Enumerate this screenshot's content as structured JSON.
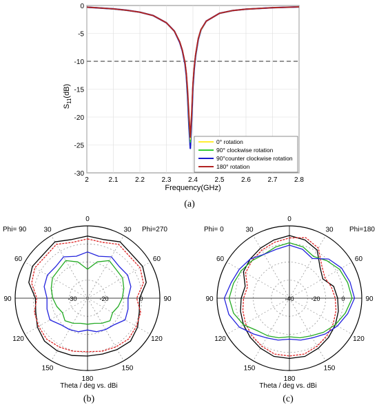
{
  "colors": {
    "rot0": "#ffee33",
    "rot90cw": "#33cc33",
    "rot90ccw": "#1a1acc",
    "rot180": "#b22222",
    "polar_black": "#000000",
    "polar_red": "#dd2222",
    "polar_green": "#22aa22",
    "polar_blue": "#2222dd",
    "ref_line": "#555555",
    "grid": "#dddddd"
  },
  "chart_data": [
    {
      "type": "line",
      "panel_label": "(a)",
      "xlabel": "Frequency(GHz)",
      "ylabel": "S11(dB)",
      "ylabel_main": "S",
      "ylabel_sub": "11",
      "ylabel_unit": "(dB)",
      "xlim": [
        2.0,
        2.8
      ],
      "ylim": [
        -30,
        0
      ],
      "xticks": [
        2.0,
        2.1,
        2.2,
        2.3,
        2.4,
        2.5,
        2.6,
        2.7,
        2.8
      ],
      "xtick_labels": [
        "2",
        "2.1",
        "2.2",
        "2.3",
        "2.4",
        "2.5",
        "2.6",
        "2.7",
        "2.8"
      ],
      "yticks": [
        0,
        -5,
        -10,
        -15,
        -20,
        -25,
        -30
      ],
      "ytick_labels": [
        "0",
        "-5",
        "-10",
        "-15",
        "-20",
        "-25",
        "-30"
      ],
      "grid": true,
      "reference_line": -10,
      "legend_position": "lower-right",
      "x": [
        2.0,
        2.05,
        2.1,
        2.15,
        2.2,
        2.25,
        2.3,
        2.33,
        2.35,
        2.36,
        2.37,
        2.375,
        2.38,
        2.385,
        2.39,
        2.395,
        2.4,
        2.405,
        2.41,
        2.42,
        2.43,
        2.45,
        2.5,
        2.55,
        2.6,
        2.7,
        2.8
      ],
      "series": [
        {
          "name": "0° rotation",
          "values": [
            -0.3,
            -0.45,
            -0.6,
            -0.85,
            -1.2,
            -1.8,
            -3.1,
            -4.6,
            -6.5,
            -8.0,
            -10.3,
            -12.2,
            -15.5,
            -20.0,
            -24.0,
            -19.5,
            -14.0,
            -11.0,
            -8.8,
            -6.0,
            -4.4,
            -2.8,
            -1.4,
            -0.9,
            -0.65,
            -0.4,
            -0.25
          ]
        },
        {
          "name": "90° clockwise rotation",
          "values": [
            -0.3,
            -0.45,
            -0.6,
            -0.85,
            -1.2,
            -1.8,
            -3.1,
            -4.6,
            -6.5,
            -8.0,
            -10.3,
            -12.3,
            -15.8,
            -20.5,
            -24.5,
            -19.8,
            -14.2,
            -11.1,
            -8.9,
            -6.0,
            -4.4,
            -2.8,
            -1.4,
            -0.9,
            -0.65,
            -0.4,
            -0.25
          ]
        },
        {
          "name": "90°counter clockwise rotation",
          "values": [
            -0.3,
            -0.45,
            -0.6,
            -0.85,
            -1.2,
            -1.8,
            -3.1,
            -4.6,
            -6.6,
            -8.1,
            -10.5,
            -12.6,
            -16.4,
            -21.5,
            -25.6,
            -20.6,
            -14.6,
            -11.3,
            -9.0,
            -6.1,
            -4.4,
            -2.8,
            -1.4,
            -0.9,
            -0.65,
            -0.4,
            -0.25
          ]
        },
        {
          "name": "180° rotation",
          "values": [
            -0.3,
            -0.45,
            -0.6,
            -0.85,
            -1.2,
            -1.8,
            -3.1,
            -4.6,
            -6.5,
            -8.0,
            -10.2,
            -12.1,
            -15.2,
            -19.6,
            -23.6,
            -19.3,
            -13.9,
            -10.9,
            -8.7,
            -5.9,
            -4.3,
            -2.8,
            -1.4,
            -0.9,
            -0.65,
            -0.4,
            -0.25
          ]
        }
      ]
    },
    {
      "type": "polar",
      "panel_label": "(b)",
      "axis_title": "Theta / deg vs. dBi",
      "left_label": "Phi= 90",
      "right_label": "Phi=270",
      "angle_labels": [
        "0",
        "30",
        "60",
        "90",
        "120",
        "150",
        "180",
        "150",
        "120",
        "90",
        "60",
        "30"
      ],
      "radial_labels": [
        "-30",
        "-20",
        "0"
      ],
      "rlim": [
        -40,
        10
      ],
      "grid": true,
      "series": [
        {
          "name": "black",
          "angles": [
            0,
            15,
            30,
            45,
            60,
            75,
            90,
            105,
            120,
            135,
            150,
            165,
            180,
            195,
            210,
            225,
            240,
            255,
            270,
            285,
            300,
            315,
            330,
            345
          ],
          "values": [
            3,
            2,
            5,
            3,
            4,
            2,
            -4,
            -3,
            0,
            2,
            1,
            0,
            0,
            1,
            2,
            2,
            0,
            -3,
            -4,
            2,
            4,
            3,
            5,
            2
          ]
        },
        {
          "name": "red",
          "angles": [
            0,
            15,
            30,
            45,
            60,
            75,
            90,
            105,
            120,
            135,
            150,
            165,
            180,
            195,
            210,
            225,
            240,
            255,
            270,
            285,
            300,
            315,
            330,
            345
          ],
          "values": [
            1,
            0,
            3,
            1,
            2,
            0,
            -6,
            -2,
            -1,
            0,
            -1,
            -2,
            -3,
            -2,
            -1,
            0,
            -1,
            -2,
            -5,
            0,
            2,
            1,
            3,
            0
          ]
        },
        {
          "name": "blue",
          "angles": [
            0,
            15,
            30,
            45,
            60,
            75,
            90,
            105,
            120,
            135,
            150,
            165,
            180,
            195,
            210,
            225,
            240,
            255,
            270,
            285,
            300,
            315,
            330,
            345
          ],
          "values": [
            -8,
            -10,
            -7,
            -9,
            -8,
            -9,
            -12,
            -11,
            -10,
            -14,
            -15,
            -16,
            -18,
            -16,
            -15,
            -14,
            -10,
            -11,
            -12,
            -9,
            -8,
            -9,
            -7,
            -10
          ]
        },
        {
          "name": "green",
          "angles": [
            0,
            15,
            30,
            45,
            60,
            75,
            90,
            105,
            120,
            135,
            150,
            165,
            180,
            195,
            210,
            225,
            240,
            255,
            270,
            285,
            300,
            315,
            330,
            345
          ],
          "values": [
            -20,
            -14,
            -10,
            -12,
            -12,
            -14,
            -16,
            -18,
            -20,
            -18,
            -20,
            -22,
            -22,
            -22,
            -20,
            -18,
            -20,
            -18,
            -16,
            -14,
            -12,
            -12,
            -10,
            -14
          ]
        }
      ]
    },
    {
      "type": "polar",
      "panel_label": "(c)",
      "axis_title": "Theta / deg vs. dBi",
      "left_label": "Phi= 0",
      "right_label": "Phi=180",
      "angle_labels": [
        "0",
        "30",
        "60",
        "90",
        "120",
        "150",
        "180",
        "150",
        "120",
        "90",
        "60",
        "30"
      ],
      "radial_labels": [
        "-40",
        "-20",
        "0"
      ],
      "rlim": [
        -50,
        10
      ],
      "grid": true,
      "series": [
        {
          "name": "black",
          "angles": [
            0,
            15,
            30,
            45,
            60,
            75,
            90,
            105,
            120,
            135,
            150,
            165,
            180,
            195,
            210,
            225,
            240,
            255,
            270,
            285,
            300,
            315,
            330,
            345
          ],
          "values": [
            2,
            0,
            -4,
            -14,
            -18,
            -12,
            -10,
            -8,
            -6,
            -4,
            -2,
            0,
            0,
            0,
            -2,
            -4,
            -6,
            -8,
            -10,
            -12,
            -6,
            -4,
            -2,
            0
          ]
        },
        {
          "name": "red",
          "angles": [
            0,
            15,
            30,
            45,
            60,
            75,
            90,
            105,
            120,
            135,
            150,
            165,
            180,
            195,
            210,
            225,
            240,
            255,
            270,
            285,
            300,
            315,
            330,
            345
          ],
          "values": [
            0,
            2,
            -2,
            -12,
            -16,
            -14,
            -12,
            -10,
            -8,
            -6,
            -4,
            -2,
            -2,
            -2,
            -4,
            -6,
            -8,
            -10,
            -12,
            -14,
            -8,
            -6,
            -4,
            -2
          ]
        },
        {
          "name": "green",
          "angles": [
            0,
            15,
            30,
            45,
            60,
            75,
            90,
            105,
            120,
            135,
            150,
            165,
            180,
            195,
            210,
            225,
            240,
            255,
            270,
            285,
            300,
            315,
            330,
            345
          ],
          "values": [
            -4,
            -6,
            -10,
            -6,
            -2,
            0,
            2,
            -2,
            -6,
            -10,
            -14,
            -16,
            -18,
            -16,
            -14,
            -12,
            -6,
            -2,
            0,
            -2,
            -4,
            -6,
            -8,
            -6
          ]
        },
        {
          "name": "blue",
          "angles": [
            0,
            15,
            30,
            45,
            60,
            75,
            90,
            105,
            120,
            135,
            150,
            165,
            180,
            195,
            210,
            225,
            240,
            255,
            270,
            285,
            300,
            315,
            330,
            345
          ],
          "values": [
            -6,
            -8,
            -12,
            -4,
            0,
            2,
            4,
            0,
            -4,
            -8,
            -12,
            -14,
            -16,
            -14,
            -12,
            -8,
            -2,
            2,
            4,
            0,
            -2,
            -4,
            -8,
            -8
          ]
        }
      ]
    }
  ]
}
